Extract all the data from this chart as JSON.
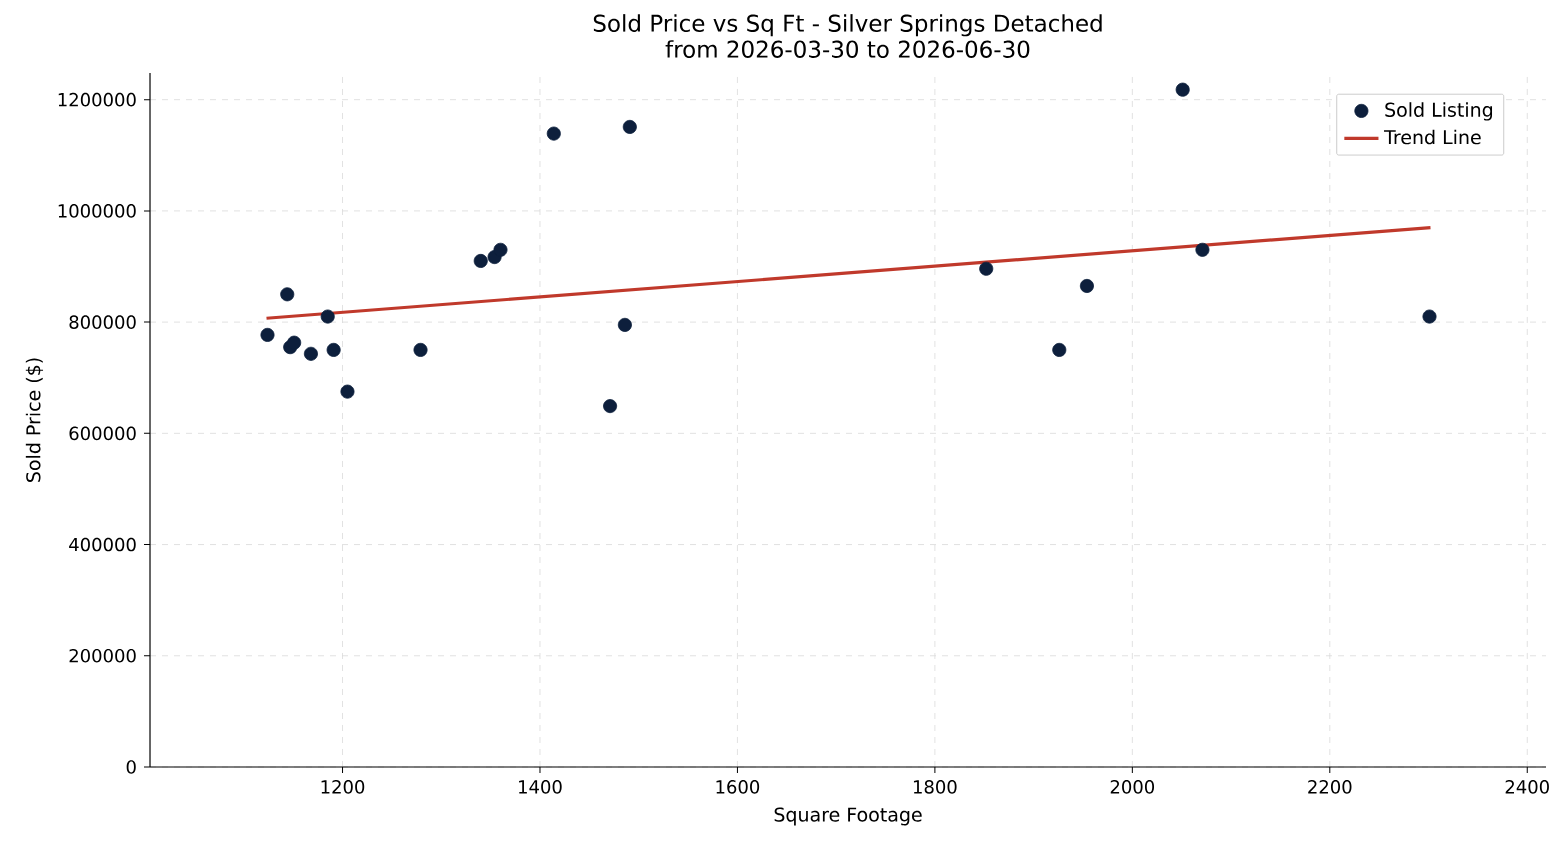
{
  "chart_data": {
    "type": "scatter",
    "title": "Sold Price vs Sq Ft - Silver Springs Detached",
    "subtitle": "from 2026-03-30 to 2026-06-30",
    "xlabel": "Square Footage",
    "ylabel": "Sold Price ($)",
    "xlim": [
      1005,
      2419
    ],
    "ylim": [
      0,
      1248000
    ],
    "xticks": [
      1200,
      1400,
      1600,
      1800,
      2000,
      2200,
      2400
    ],
    "yticks": [
      0,
      200000,
      400000,
      600000,
      800000,
      1000000,
      1200000
    ],
    "grid": true,
    "legend": "top right",
    "marker": "circle",
    "series": [
      {
        "name": "Sold Listing",
        "color": "#0d1f3c",
        "x": [
          1124,
          1144,
          1147,
          1151,
          1168,
          1185,
          1191,
          1205,
          1279,
          1340,
          1354,
          1360,
          1414,
          1471,
          1486,
          1491,
          1852,
          1926,
          1954,
          2051,
          2071,
          2301
        ],
        "values": [
          777000,
          850000,
          755000,
          763000,
          743000,
          810000,
          750000,
          675000,
          750000,
          910000,
          917000,
          930000,
          1139000,
          649000,
          795000,
          1151000,
          896000,
          750000,
          865000,
          1218000,
          930000,
          810000
        ]
      },
      {
        "name": "Trend Line",
        "type": "line",
        "marker": "none",
        "color": "#c0392b",
        "x": [
          1123,
          2302
        ],
        "values": [
          807000,
          970000
        ]
      }
    ]
  }
}
